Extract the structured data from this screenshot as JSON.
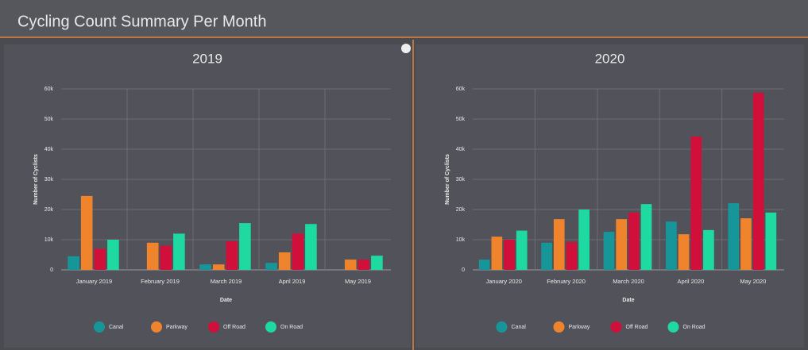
{
  "header": {
    "title": "Cycling Count Summary Per Month"
  },
  "chart_data": [
    {
      "type": "bar",
      "title": "2019",
      "x_label": "Date",
      "y_label": "Number of Cyclists",
      "categories": [
        "January 2019",
        "February 2019",
        "March 2019",
        "April 2019",
        "May 2019"
      ],
      "series": [
        {
          "name": "Canal",
          "color": "#17969a",
          "values": [
            4500,
            0,
            1800,
            2300,
            0
          ]
        },
        {
          "name": "Parkway",
          "color": "#f0842c",
          "values": [
            24500,
            9000,
            1800,
            5800,
            3400
          ]
        },
        {
          "name": "Off Road",
          "color": "#d0103a",
          "values": [
            7000,
            8000,
            9500,
            12000,
            3400
          ]
        },
        {
          "name": "On Road",
          "color": "#1ed9a0",
          "values": [
            10000,
            12000,
            15500,
            15200,
            4700
          ]
        }
      ],
      "ylim": [
        0,
        60000
      ],
      "yticks": [
        0,
        {
          "value": 10000,
          "label": "10k"
        },
        {
          "value": 20000,
          "label": "20k"
        },
        {
          "value": 30000,
          "label": "30k"
        },
        {
          "value": 40000,
          "label": "40k"
        },
        {
          "value": 50000,
          "label": "50k"
        },
        {
          "value": 60000,
          "label": "60k"
        }
      ],
      "grid": true
    },
    {
      "type": "bar",
      "title": "2020",
      "x_label": "Date",
      "y_label": "Number of Cyclists",
      "categories": [
        "January 2020",
        "February 2020",
        "March 2020",
        "April 2020",
        "May 2020"
      ],
      "series": [
        {
          "name": "Canal",
          "color": "#17969a",
          "values": [
            3400,
            9000,
            12600,
            16000,
            22100
          ]
        },
        {
          "name": "Parkway",
          "color": "#f0842c",
          "values": [
            11000,
            16800,
            16800,
            11800,
            17100
          ]
        },
        {
          "name": "Off Road",
          "color": "#d0103a",
          "values": [
            10000,
            9200,
            19000,
            44200,
            58700
          ]
        },
        {
          "name": "On Road",
          "color": "#1ed9a0",
          "values": [
            13000,
            20000,
            21800,
            13200,
            19000
          ]
        }
      ],
      "ylim": [
        0,
        60000
      ],
      "yticks": [
        0,
        {
          "value": 10000,
          "label": "10k"
        },
        {
          "value": 20000,
          "label": "20k"
        },
        {
          "value": 30000,
          "label": "30k"
        },
        {
          "value": 40000,
          "label": "40k"
        },
        {
          "value": 50000,
          "label": "50k"
        },
        {
          "value": 60000,
          "label": "60k"
        }
      ],
      "grid": true
    }
  ]
}
